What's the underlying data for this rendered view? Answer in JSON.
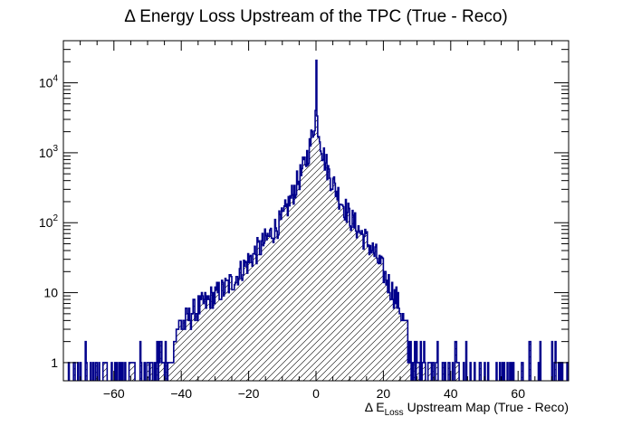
{
  "chart_data": {
    "type": "histogram",
    "title": "Δ Energy Loss Upstream of the TPC (True - Reco)",
    "xlabel": {
      "prefix": "Δ E",
      "subscript": "Loss",
      "suffix": " Upstream Map (True - Reco)"
    },
    "ylabel": "",
    "xlim": [
      -75,
      75
    ],
    "ylim": [
      0.55,
      40000
    ],
    "yscale": "log",
    "grid": false,
    "legend": "none",
    "x_ticks": [
      -60,
      -40,
      -20,
      0,
      20,
      40,
      60
    ],
    "x_tick_labels": [
      "−60",
      "−40",
      "−20",
      "0",
      "20",
      "40",
      "60"
    ],
    "y_ticks": [
      {
        "value": 1,
        "base": "1",
        "exp": ""
      },
      {
        "value": 10,
        "base": "10",
        "exp": ""
      },
      {
        "value": 100,
        "base": "10",
        "exp": "2"
      },
      {
        "value": 1000,
        "base": "10",
        "exp": "3"
      },
      {
        "value": 10000,
        "base": "10",
        "exp": "4"
      }
    ],
    "line_color": "#00008b",
    "fill": "diagonal hatch",
    "fill_color": "#000000",
    "envelope": {
      "x": [
        -75,
        -70,
        -62,
        -55,
        -50,
        -45,
        -40,
        -35,
        -30,
        -25,
        -20,
        -15,
        -10,
        -7,
        -4,
        -2,
        -1,
        -0.5,
        0,
        0.5,
        1,
        2,
        4,
        7,
        10,
        15,
        18,
        20,
        22,
        24,
        26,
        28,
        30,
        35,
        40,
        45,
        50,
        55,
        60,
        65,
        70,
        75
      ],
      "y": [
        0.7,
        0.8,
        1.0,
        1.2,
        1.5,
        2.2,
        3.5,
        6,
        9,
        14,
        28,
        55,
        110,
        250,
        550,
        1100,
        1900,
        2600,
        4200,
        2600,
        1900,
        1000,
        480,
        230,
        120,
        55,
        32,
        20,
        12,
        8,
        4,
        2.5,
        1.6,
        1.2,
        1.0,
        0.9,
        0.8,
        0.8,
        0.75,
        0.7,
        0.65,
        0.6
      ]
    },
    "bin_width": 0.25,
    "spike": {
      "x": 0,
      "y": 21000
    }
  }
}
